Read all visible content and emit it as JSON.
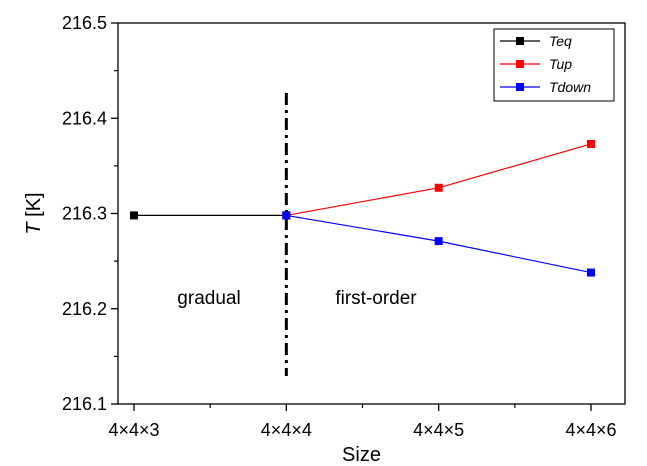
{
  "chart_data": {
    "type": "line",
    "xlabel": "Size",
    "ylabel_italic": "T",
    "ylabel_unit": " [K]",
    "categories": [
      "4×4×3",
      "4×4×4",
      "4×4×5",
      "4×4×6"
    ],
    "ylim": [
      216.1,
      216.5
    ],
    "yticks": [
      "216.1",
      "216.2",
      "216.3",
      "216.4",
      "216.5"
    ],
    "legend_position": "top-right",
    "series": [
      {
        "name": "Teq",
        "color": "#000000",
        "x": [
          "4×4×3",
          "4×4×4"
        ],
        "values": [
          216.298,
          216.298
        ]
      },
      {
        "name": "Tup",
        "color": "#ff0000",
        "x": [
          "4×4×4",
          "4×4×5",
          "4×4×6"
        ],
        "values": [
          216.298,
          216.327,
          216.373
        ]
      },
      {
        "name": "Tdown",
        "color": "#0000ff",
        "x": [
          "4×4×4",
          "4×4×5",
          "4×4×6"
        ],
        "values": [
          216.298,
          216.271,
          216.238
        ]
      }
    ],
    "divider": {
      "at": "4×4×4",
      "style": "dash-dot"
    },
    "annotations": [
      {
        "text": "gradual",
        "region": "left"
      },
      {
        "text": "first-order",
        "region": "right"
      }
    ]
  }
}
